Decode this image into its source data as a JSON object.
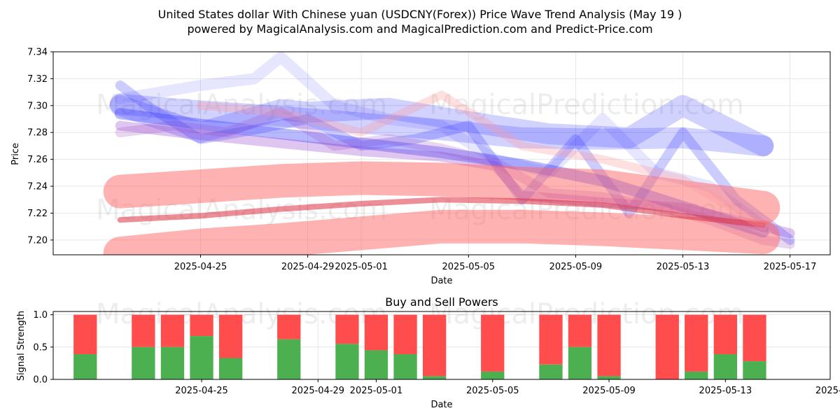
{
  "title_line1": "United States dollar With Chinese yuan (USDCNY(Forex)) Price Wave Trend Analysis (May 19 )",
  "title_line2": "powered by MagicalAnalysis.com and MagicalPrediction.com and Predict-Price.com",
  "watermarks": [
    "MagicalAnalysis.com",
    "MagicalPrediction.com"
  ],
  "chart_data": [
    {
      "type": "line",
      "title": "",
      "xlabel": "Date",
      "ylabel": "Price",
      "ylim": [
        7.189,
        7.34
      ],
      "yticks": [
        7.2,
        7.22,
        7.24,
        7.26,
        7.28,
        7.3,
        7.32,
        7.34
      ],
      "ytick_labels": [
        "7.20",
        "7.22",
        "7.24",
        "7.26",
        "7.28",
        "7.30",
        "7.32",
        "7.34"
      ],
      "xlim_days": [
        -2.5,
        26.5
      ],
      "x_origin": "2025-04-22",
      "xticks_days": [
        3,
        7,
        9,
        13,
        17,
        21,
        25
      ],
      "xtick_labels": [
        "2025-04-25",
        "2025-04-29",
        "2025-05-01",
        "2025-05-05",
        "2025-05-09",
        "2025-05-13",
        "2025-05-17"
      ],
      "grid": true,
      "series": [
        {
          "name": "blue-wave-1",
          "color": "#3333ff",
          "opacity": 0.22,
          "width": 30,
          "x": [
            0,
            3,
            6,
            9,
            12,
            15,
            18,
            21,
            24
          ],
          "y": [
            7.301,
            7.296,
            7.292,
            7.287,
            7.282,
            7.276,
            7.275,
            7.276,
            7.27
          ]
        },
        {
          "name": "blue-wave-2",
          "color": "#3333ff",
          "opacity": 0.22,
          "width": 30,
          "x": [
            0,
            3,
            6,
            7,
            10,
            13,
            16,
            19,
            21,
            24
          ],
          "y": [
            7.3,
            7.28,
            7.297,
            7.295,
            7.298,
            7.288,
            7.279,
            7.276,
            7.3,
            7.27
          ]
        },
        {
          "name": "blue-wave-3",
          "color": "#3333ff",
          "opacity": 0.35,
          "width": 16,
          "x": [
            0,
            3,
            6,
            9,
            12,
            15,
            18,
            21,
            24
          ],
          "y": [
            7.294,
            7.286,
            7.279,
            7.272,
            7.265,
            7.256,
            7.244,
            7.225,
            7.206
          ]
        },
        {
          "name": "blue-wave-4",
          "color": "#3333ff",
          "opacity": 0.25,
          "width": 14,
          "x": [
            0,
            1,
            3,
            5,
            7,
            9,
            11,
            13,
            15,
            17,
            19,
            21,
            23,
            25
          ],
          "y": [
            7.315,
            7.3,
            7.275,
            7.282,
            7.29,
            7.27,
            7.275,
            7.285,
            7.23,
            7.275,
            7.22,
            7.28,
            7.23,
            7.2
          ]
        },
        {
          "name": "blue-wave-5",
          "color": "#3333ff",
          "opacity": 0.12,
          "width": 16,
          "x": [
            0,
            3,
            5,
            6,
            8,
            10,
            12,
            14,
            16,
            18,
            20,
            22,
            24
          ],
          "y": [
            7.305,
            7.315,
            7.32,
            7.336,
            7.3,
            7.29,
            7.285,
            7.26,
            7.25,
            7.29,
            7.25,
            7.24,
            7.21
          ]
        },
        {
          "name": "purple-wave-1",
          "color": "#8833cc",
          "opacity": 0.28,
          "width": 14,
          "x": [
            0,
            3,
            6,
            9,
            12,
            14,
            15,
            18,
            21,
            24,
            25
          ],
          "y": [
            7.285,
            7.278,
            7.272,
            7.266,
            7.262,
            7.255,
            7.233,
            7.228,
            7.224,
            7.21,
            7.205
          ]
        },
        {
          "name": "purple-wave-2",
          "color": "#9944bb",
          "opacity": 0.22,
          "width": 14,
          "x": [
            0,
            2,
            4,
            6,
            8,
            10,
            12,
            14,
            16,
            18,
            20,
            22,
            24,
            25
          ],
          "y": [
            7.28,
            7.285,
            7.28,
            7.295,
            7.27,
            7.275,
            7.268,
            7.258,
            7.235,
            7.232,
            7.225,
            7.215,
            7.2,
            7.197
          ]
        },
        {
          "name": "red-wave-1",
          "color": "#ff6666",
          "opacity": 0.5,
          "width": 48,
          "x": [
            0,
            3,
            6,
            9,
            12,
            15,
            18,
            21,
            24
          ],
          "y": [
            7.236,
            7.24,
            7.244,
            7.246,
            7.245,
            7.242,
            7.24,
            7.232,
            7.224
          ]
        },
        {
          "name": "red-wave-2",
          "color": "#ff6666",
          "opacity": 0.5,
          "width": 48,
          "x": [
            0,
            3,
            6,
            9,
            12,
            15,
            18,
            21,
            24
          ],
          "y": [
            7.19,
            7.196,
            7.2,
            7.205,
            7.21,
            7.21,
            7.208,
            7.205,
            7.202
          ]
        },
        {
          "name": "red-trend",
          "color": "#dd3344",
          "opacity": 0.55,
          "width": 8,
          "x": [
            0,
            3,
            6,
            9,
            12,
            15,
            18,
            21,
            24
          ],
          "y": [
            7.215,
            7.218,
            7.223,
            7.227,
            7.23,
            7.229,
            7.226,
            7.218,
            7.211
          ]
        },
        {
          "name": "red-wave-3",
          "color": "#ff9999",
          "opacity": 0.3,
          "width": 12,
          "x": [
            3,
            6,
            9,
            12,
            15,
            18,
            21,
            24
          ],
          "y": [
            7.3,
            7.295,
            7.28,
            7.308,
            7.27,
            7.26,
            7.245,
            7.21
          ]
        }
      ]
    },
    {
      "type": "bar",
      "title": "Buy and Sell Powers",
      "xlabel": "Date",
      "ylabel": "Signal Strength",
      "ylim": [
        0,
        1.05
      ],
      "yticks": [
        0.0,
        0.5,
        1.0
      ],
      "ytick_labels": [
        "0.0",
        "0.5",
        "1.0"
      ],
      "xlim_days": [
        -1.1,
        25.6
      ],
      "x_origin": "2025-04-21",
      "xticks_days": [
        4,
        8,
        10,
        14,
        18,
        22,
        26
      ],
      "xtick_labels": [
        "2025-04-25",
        "2025-04-29",
        "2025-05-01",
        "2025-05-05",
        "2025-05-09",
        "2025-05-13",
        "2025-05-17"
      ],
      "grid": true,
      "buy_color": "#4caf50",
      "sell_color": "#ff4d4d",
      "bars": [
        {
          "day": 0,
          "buy": 0.39
        },
        {
          "day": 2,
          "buy": 0.5
        },
        {
          "day": 3,
          "buy": 0.5
        },
        {
          "day": 4,
          "buy": 0.67
        },
        {
          "day": 5,
          "buy": 0.33
        },
        {
          "day": 7,
          "buy": 0.62
        },
        {
          "day": 9,
          "buy": 0.55
        },
        {
          "day": 10,
          "buy": 0.45
        },
        {
          "day": 11,
          "buy": 0.39
        },
        {
          "day": 12,
          "buy": 0.05
        },
        {
          "day": 14,
          "buy": 0.12
        },
        {
          "day": 16,
          "buy": 0.23
        },
        {
          "day": 17,
          "buy": 0.5
        },
        {
          "day": 18,
          "buy": 0.05
        },
        {
          "day": 20,
          "buy": 0.0
        },
        {
          "day": 21,
          "buy": 0.12
        },
        {
          "day": 22,
          "buy": 0.39
        },
        {
          "day": 23,
          "buy": 0.28
        }
      ]
    }
  ]
}
